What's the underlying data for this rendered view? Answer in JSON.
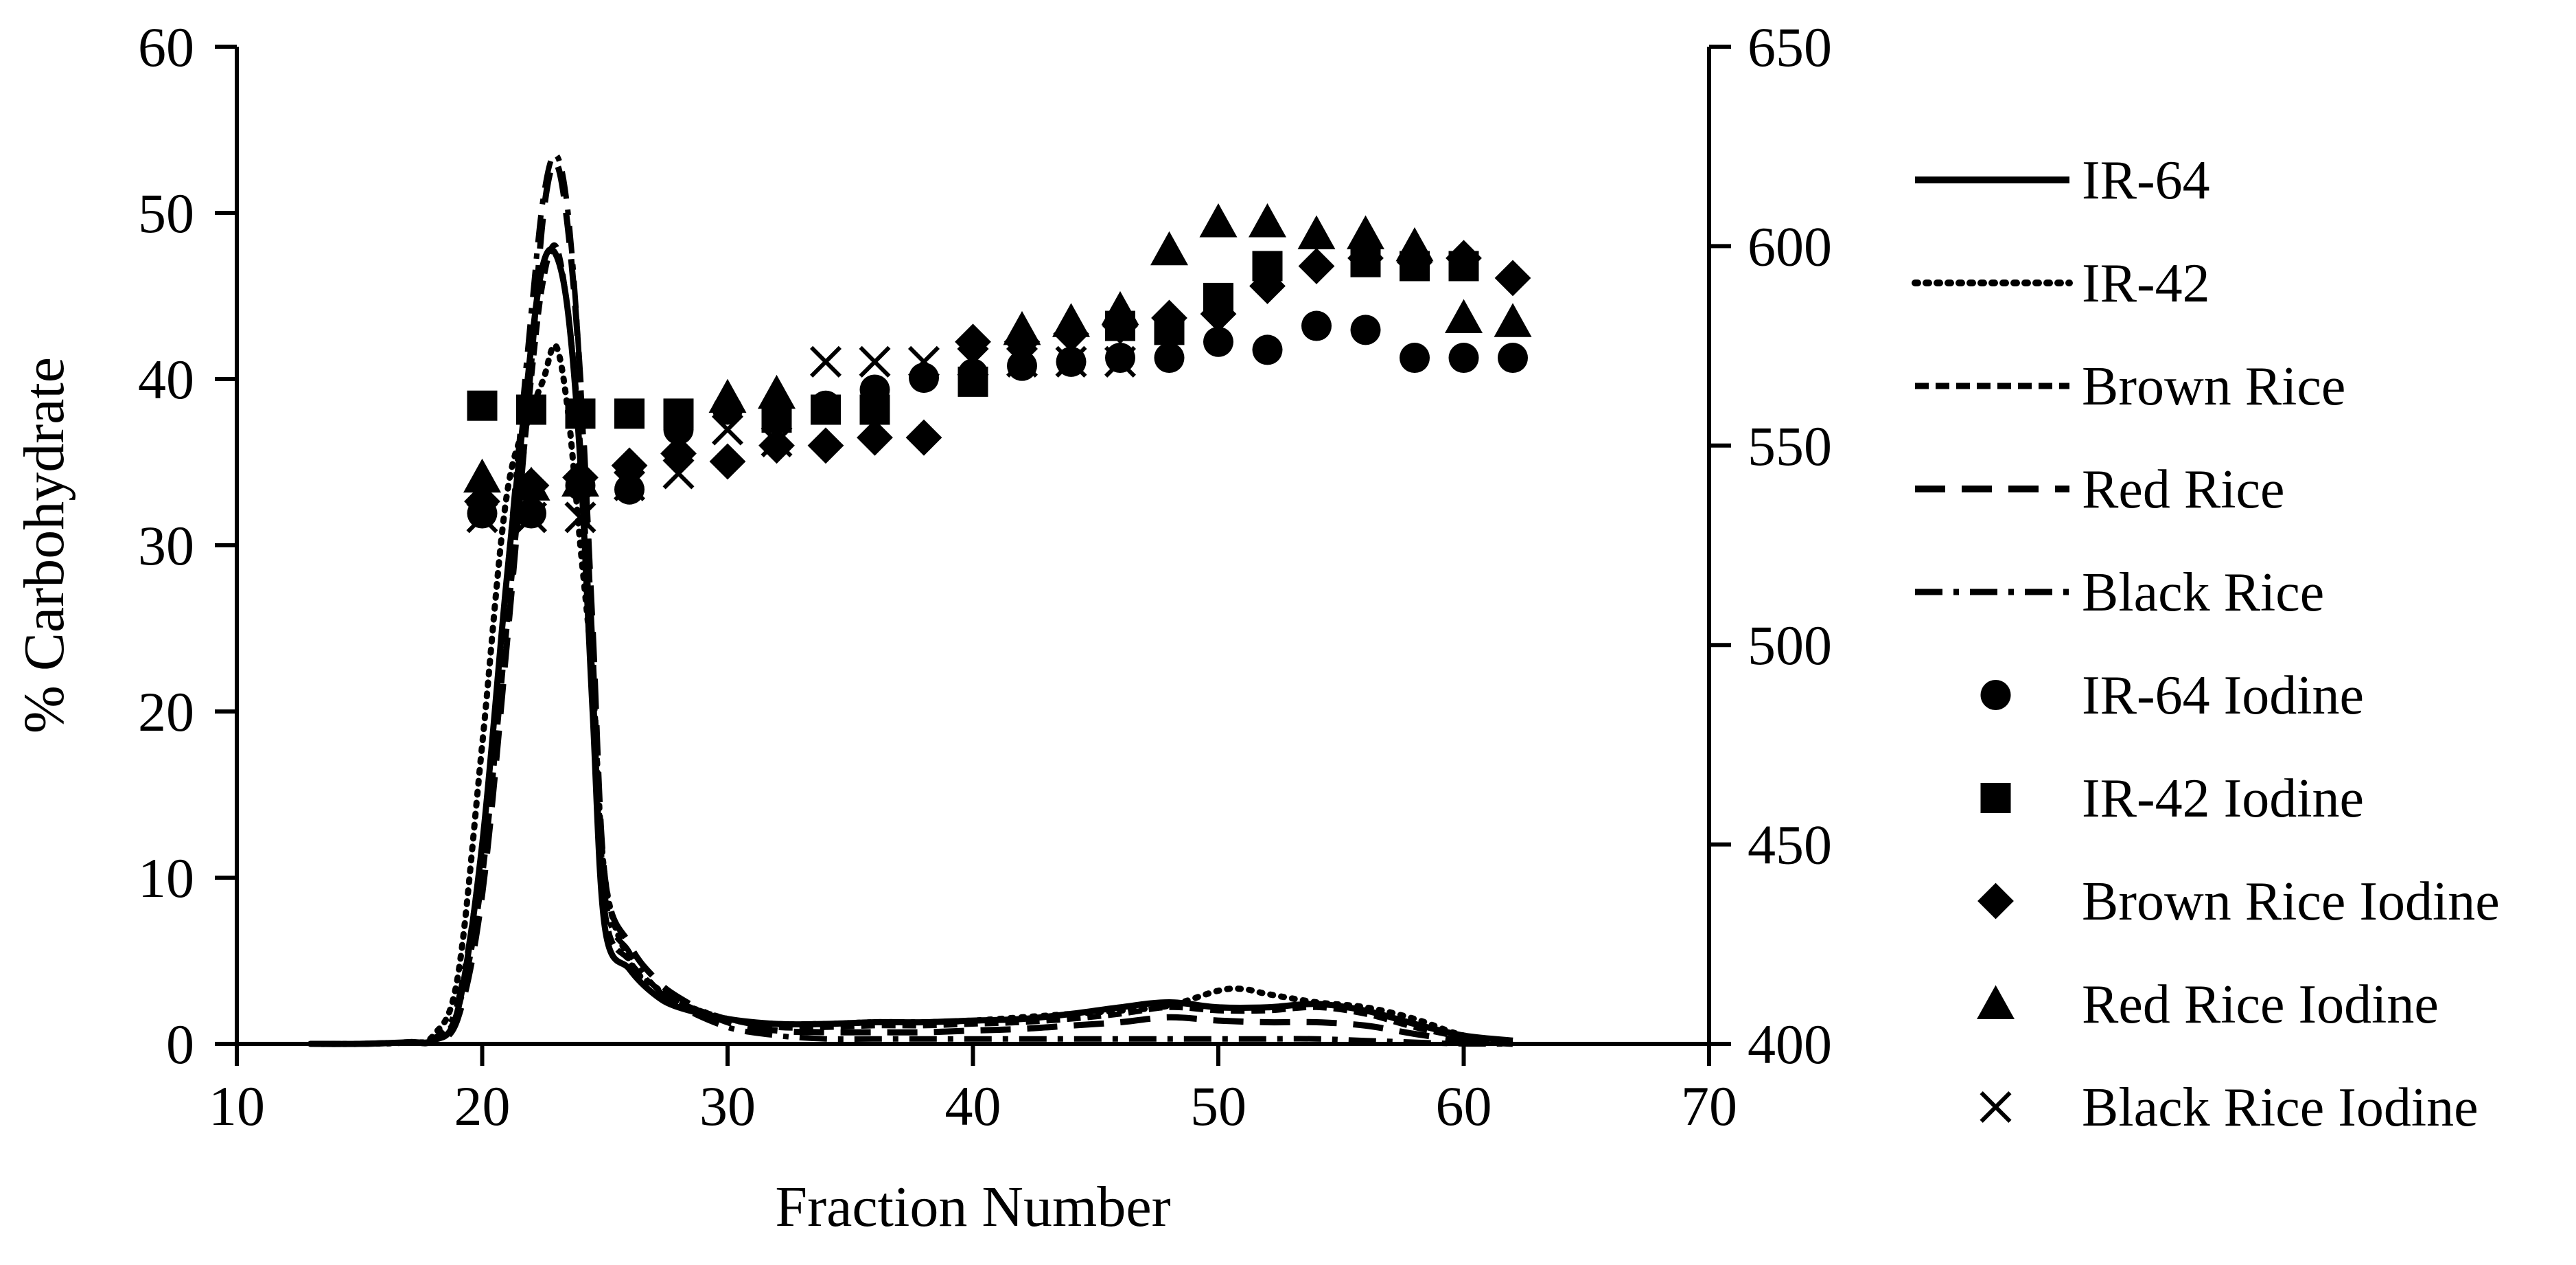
{
  "chart_data": {
    "type": "line",
    "xlabel": "Fraction Number",
    "ylabel": "% Carbohydrate",
    "y2label": "",
    "xlim": [
      10,
      70
    ],
    "ylim": [
      0,
      60
    ],
    "y2lim": [
      400,
      650
    ],
    "xticks": [
      10,
      20,
      30,
      40,
      50,
      60,
      70
    ],
    "yticks": [
      0,
      10,
      20,
      30,
      40,
      50,
      60
    ],
    "y2ticks": [
      400,
      450,
      500,
      550,
      600,
      650
    ],
    "grid": false,
    "legend_position": "right",
    "series": [
      {
        "name": "IR-64",
        "axis": "left",
        "style": "solid",
        "x": [
          13,
          15,
          17,
          18,
          19,
          20,
          21,
          22,
          22.5,
          23,
          23.5,
          24,
          24.5,
          25,
          26,
          27,
          28,
          30,
          32,
          34,
          36,
          38,
          40,
          42,
          44,
          46,
          48,
          50,
          52,
          54,
          56,
          58,
          60,
          62
        ],
        "values": [
          0,
          0,
          0.1,
          0.2,
          2,
          12,
          28,
          42,
          47,
          47.5,
          44,
          35,
          20,
          7,
          4.5,
          3,
          2.2,
          1.5,
          1.2,
          1.2,
          1.3,
          1.3,
          1.4,
          1.5,
          1.8,
          2.2,
          2.5,
          2.2,
          2.2,
          2.4,
          2.0,
          1.2,
          0.5,
          0.2
        ]
      },
      {
        "name": "IR-42",
        "axis": "left",
        "style": "dotted",
        "x": [
          13,
          15,
          17,
          18,
          19,
          20,
          21,
          22,
          22.5,
          23,
          23.5,
          24,
          24.5,
          25,
          26,
          27,
          28,
          30,
          32,
          34,
          36,
          38,
          40,
          42,
          44,
          46,
          48,
          50,
          51,
          52,
          54,
          56,
          58,
          60,
          62
        ],
        "values": [
          0,
          0,
          0.1,
          0.5,
          4,
          18,
          33,
          38,
          40,
          42,
          38,
          30,
          22,
          10,
          5,
          3.5,
          2.5,
          1.5,
          1.2,
          1.2,
          1.3,
          1.3,
          1.4,
          1.6,
          1.8,
          2.0,
          2.3,
          3.2,
          3.3,
          3.0,
          2.5,
          2.2,
          1.5,
          0.5,
          0.1
        ]
      },
      {
        "name": "Brown Rice",
        "axis": "left",
        "style": "short-dash",
        "x": [
          13,
          15,
          17,
          18,
          19,
          20,
          21,
          22,
          22.5,
          23,
          23.5,
          24,
          24.5,
          25,
          26,
          27,
          28,
          30,
          32,
          34,
          36,
          38,
          40,
          42,
          44,
          46,
          48,
          50,
          52,
          54,
          56,
          58,
          60,
          62
        ],
        "values": [
          0,
          0,
          0.1,
          0.2,
          2,
          10,
          25,
          40,
          46,
          48,
          44,
          36,
          22,
          8,
          5,
          3.5,
          2.5,
          1.5,
          1.0,
          1.0,
          1.1,
          1.1,
          1.2,
          1.3,
          1.5,
          1.8,
          2.2,
          2.0,
          2.0,
          2.2,
          1.8,
          1.0,
          0.4,
          0.1
        ]
      },
      {
        "name": "Red Rice",
        "axis": "left",
        "style": "long-dash",
        "x": [
          13,
          15,
          17,
          18,
          19,
          20,
          21,
          22,
          22.5,
          23,
          23.5,
          24,
          24.5,
          25,
          26,
          27,
          28,
          30,
          32,
          34,
          36,
          38,
          40,
          42,
          44,
          46,
          48,
          50,
          52,
          54,
          56,
          58,
          60,
          62
        ],
        "values": [
          0,
          0,
          0.1,
          0.2,
          1.5,
          9,
          24,
          41,
          50,
          53,
          49,
          40,
          25,
          10,
          6,
          4,
          2.8,
          1.3,
          0.8,
          0.7,
          0.7,
          0.7,
          0.8,
          0.9,
          1.1,
          1.3,
          1.6,
          1.4,
          1.3,
          1.3,
          1.1,
          0.6,
          0.2,
          0
        ]
      },
      {
        "name": "Black Rice",
        "axis": "left",
        "style": "dash-dot",
        "x": [
          13,
          15,
          17,
          18,
          19,
          20,
          21,
          22,
          22.5,
          23,
          23.5,
          24,
          24.5,
          25,
          26,
          27,
          28,
          30,
          32,
          34,
          36,
          38,
          40,
          42,
          44,
          46,
          48,
          50,
          52,
          54,
          56,
          58,
          60,
          62
        ],
        "values": [
          0,
          0,
          0.1,
          0.3,
          2.5,
          12,
          28,
          44,
          51,
          53.5,
          50,
          40,
          24,
          9,
          5.5,
          3.5,
          2.3,
          1.0,
          0.5,
          0.3,
          0.3,
          0.3,
          0.3,
          0.3,
          0.3,
          0.3,
          0.3,
          0.3,
          0.3,
          0.3,
          0.2,
          0.1,
          0,
          0
        ]
      },
      {
        "name": "IR-64 Iodine",
        "axis": "right",
        "style": "marker",
        "marker": "circle",
        "x": [
          20,
          22,
          24,
          26,
          28,
          30,
          32,
          34,
          36,
          38,
          40,
          42,
          44,
          46,
          48,
          50,
          52,
          54,
          56,
          58,
          60,
          62
        ],
        "values": [
          533,
          533,
          540,
          539,
          554,
          559,
          558,
          560,
          564,
          567,
          568,
          570,
          571,
          572,
          572,
          576,
          574,
          580,
          579,
          572,
          572,
          572
        ]
      },
      {
        "name": "IR-42 Iodine",
        "axis": "right",
        "style": "marker",
        "marker": "square",
        "x": [
          20,
          22,
          24,
          26,
          28,
          32,
          34,
          36,
          40,
          46,
          48,
          50,
          52,
          56,
          58,
          60
        ],
        "values": [
          560,
          559,
          558,
          558,
          558,
          557,
          559,
          559,
          566,
          580,
          579,
          587,
          595,
          596,
          595,
          595
        ]
      },
      {
        "name": "Brown Rice Iodine",
        "axis": "right",
        "style": "marker",
        "marker": "diamond",
        "x": [
          20,
          22,
          24,
          26,
          28,
          30,
          32,
          34,
          36,
          38,
          40,
          42,
          44,
          46,
          48,
          50,
          52,
          54,
          56,
          58,
          60,
          62
        ],
        "values": [
          536,
          540,
          542,
          545,
          548,
          546,
          550,
          550,
          552,
          552,
          576,
          576,
          578,
          580,
          582,
          583,
          590,
          595,
          597,
          596,
          597,
          592
        ]
      },
      {
        "name": "Red Rice Iodine",
        "axis": "right",
        "style": "marker",
        "marker": "triangle",
        "x": [
          20,
          22,
          24,
          30,
          32,
          42,
          44,
          46,
          48,
          50,
          52,
          54,
          56,
          58,
          60,
          62
        ],
        "values": [
          542,
          540,
          541,
          562,
          563,
          579,
          581,
          584,
          599,
          606,
          606,
          603,
          603,
          600,
          582,
          581
        ]
      },
      {
        "name": "Black Rice Iodine",
        "axis": "right",
        "style": "marker",
        "marker": "x",
        "x": [
          20,
          22,
          24,
          26,
          28,
          30,
          32,
          34,
          36,
          38,
          40,
          42,
          44,
          46
        ],
        "values": [
          532,
          532,
          532,
          540,
          543,
          554,
          551,
          571,
          571,
          571,
          571,
          571,
          571,
          571
        ]
      }
    ]
  }
}
